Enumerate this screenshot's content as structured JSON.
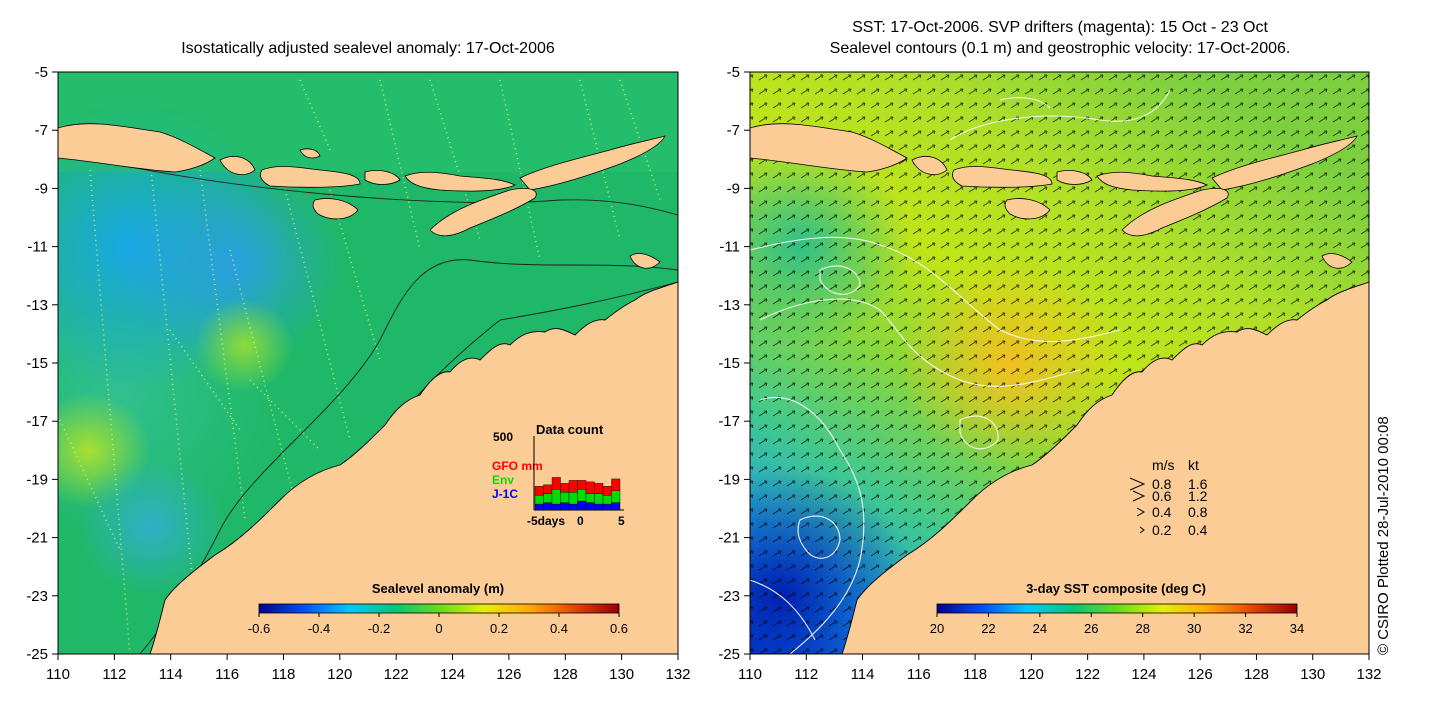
{
  "left_panel": {
    "title": "Isostatically adjusted sealevel anomaly: 17-Oct-2006",
    "colorbar": {
      "label": "Sealevel anomaly (m)",
      "ticks": [
        "-0.6",
        "-0.4",
        "-0.2",
        "0",
        "0.2",
        "0.4",
        "0.6"
      ],
      "stops": [
        "#00008c",
        "#0050ff",
        "#00c8ff",
        "#00c878",
        "#64dc1e",
        "#e6f000",
        "#ffaa00",
        "#e64600",
        "#960000"
      ]
    },
    "inset": {
      "title": "Data count",
      "ymax_label": "500",
      "legend": [
        {
          "label": "GFO mm",
          "color": "#ff0000"
        },
        {
          "label": "Env",
          "color": "#00dd00"
        },
        {
          "label": "J-1C",
          "color": "#0000ff"
        }
      ],
      "xlabels": [
        "-5days",
        "0",
        "5"
      ],
      "bars": [
        {
          "blue": 40,
          "green": 60,
          "red": 60
        },
        {
          "blue": 50,
          "green": 60,
          "red": 60
        },
        {
          "blue": 40,
          "green": 100,
          "red": 80
        },
        {
          "blue": 50,
          "green": 70,
          "red": 60
        },
        {
          "blue": 40,
          "green": 80,
          "red": 80
        },
        {
          "blue": 60,
          "green": 80,
          "red": 60
        },
        {
          "blue": 50,
          "green": 60,
          "red": 80
        },
        {
          "blue": 40,
          "green": 70,
          "red": 70
        },
        {
          "blue": 40,
          "green": 60,
          "red": 60
        },
        {
          "blue": 50,
          "green": 80,
          "red": 80
        }
      ]
    }
  },
  "right_panel": {
    "title_line1": "SST: 17-Oct-2006. SVP drifters (magenta): 15 Oct - 23 Oct",
    "title_line2": "Sealevel contours (0.1 m) and geostrophic velocity: 17-Oct-2006.",
    "colorbar": {
      "label": "3-day SST composite (deg C)",
      "ticks": [
        "20",
        "22",
        "24",
        "26",
        "28",
        "30",
        "32",
        "34"
      ],
      "stops": [
        "#00008c",
        "#0050ff",
        "#00c8ff",
        "#00c878",
        "#64dc1e",
        "#e6f000",
        "#ffaa00",
        "#e64600",
        "#960000"
      ]
    },
    "velocity_legend": {
      "header": [
        "m/s",
        "kt"
      ],
      "rows": [
        {
          "ms": "0.8",
          "kt": "1.6"
        },
        {
          "ms": "0.6",
          "kt": "1.2"
        },
        {
          "ms": "0.4",
          "kt": "0.8"
        },
        {
          "ms": "0.2",
          "kt": "0.4"
        }
      ]
    }
  },
  "axes": {
    "x_ticks": [
      "110",
      "112",
      "114",
      "116",
      "118",
      "120",
      "122",
      "124",
      "126",
      "128",
      "130",
      "132"
    ],
    "y_ticks": [
      "-5",
      "-7",
      "-9",
      "-11",
      "-13",
      "-15",
      "-17",
      "-19",
      "-21",
      "-23",
      "-25"
    ]
  },
  "credit": "© CSIRO Plotted 28-Jul-2010 00:08",
  "colors": {
    "land": "#fccc96",
    "ocean_mid": "#20b060",
    "contour_white": "#ffffff"
  }
}
